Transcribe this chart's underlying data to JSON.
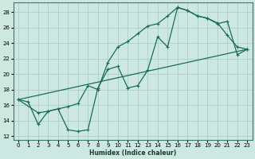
{
  "xlabel": "Humidex (Indice chaleur)",
  "ylabel": "",
  "background_color": "#cce8e0",
  "grid_color": "#aacfc8",
  "line_color": "#1a6b5a",
  "xlim": [
    -0.5,
    23.5
  ],
  "ylim": [
    11.5,
    29.2
  ],
  "xticks": [
    0,
    1,
    2,
    3,
    4,
    5,
    6,
    7,
    8,
    9,
    10,
    11,
    12,
    13,
    14,
    15,
    16,
    17,
    18,
    19,
    20,
    21,
    22,
    23
  ],
  "yticks": [
    12,
    14,
    16,
    18,
    20,
    22,
    24,
    26,
    28
  ],
  "line1_x": [
    0,
    1,
    2,
    3,
    4,
    5,
    6,
    7,
    8,
    9,
    10,
    11,
    12,
    13,
    14,
    15,
    16,
    17,
    18,
    19,
    20,
    21,
    22,
    23
  ],
  "line1_y": [
    16.7,
    16.4,
    13.5,
    15.2,
    15.5,
    12.8,
    12.6,
    12.8,
    18.2,
    20.6,
    21.0,
    18.2,
    18.5,
    20.5,
    24.8,
    23.5,
    28.6,
    28.2,
    27.5,
    27.2,
    26.6,
    25.0,
    23.5,
    23.2
  ],
  "line2_x": [
    0,
    2,
    3,
    4,
    5,
    6,
    7,
    8,
    9,
    10,
    11,
    12,
    13,
    14,
    15,
    16,
    17,
    18,
    19,
    20,
    21,
    22,
    23
  ],
  "line2_y": [
    16.7,
    15.0,
    15.2,
    15.5,
    15.8,
    16.2,
    18.5,
    18.0,
    21.5,
    23.5,
    24.2,
    25.2,
    26.2,
    26.5,
    27.5,
    28.6,
    28.2,
    27.5,
    27.2,
    26.5,
    26.8,
    22.5,
    23.2
  ],
  "line3_x": [
    0,
    23
  ],
  "line3_y": [
    16.7,
    23.2
  ]
}
